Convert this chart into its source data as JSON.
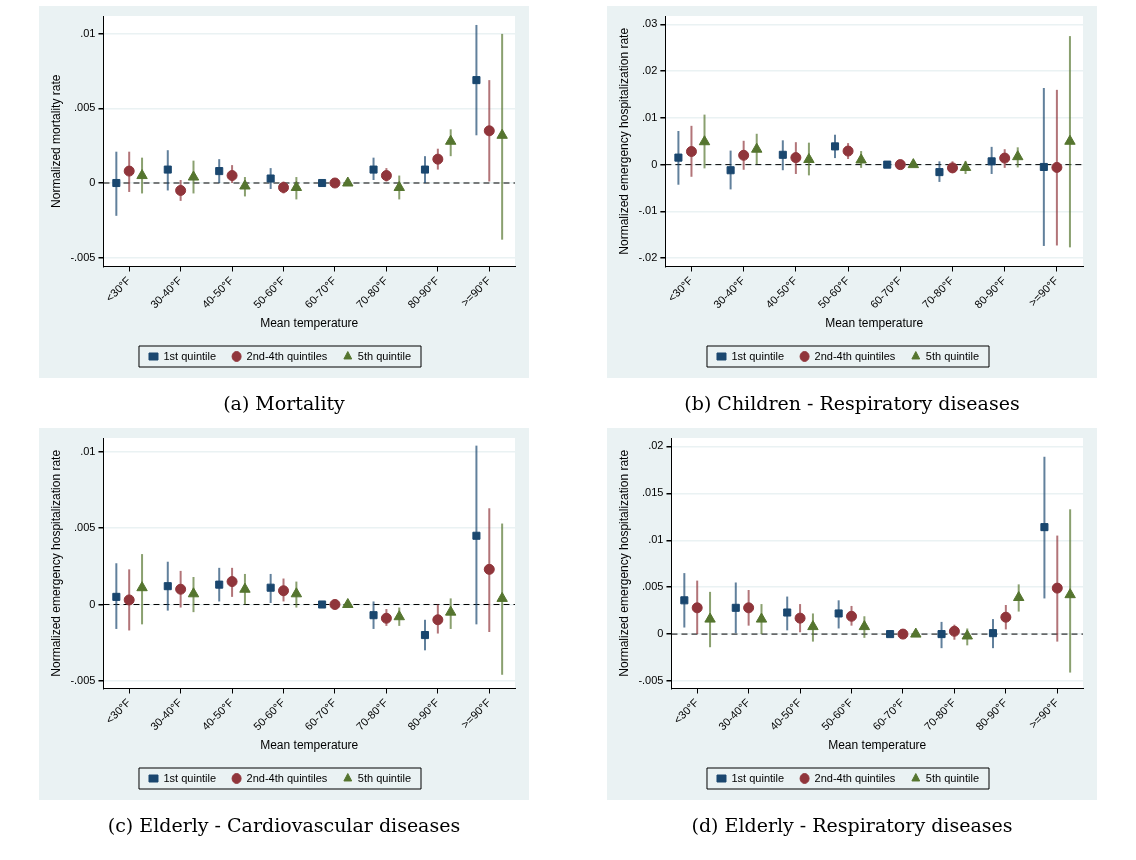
{
  "chart_data": [
    {
      "type": "scatter",
      "title": "(a) Mortality",
      "xlabel": "Mean temperature",
      "ylabel": "Normalized mortality rate",
      "categories": [
        "<30°F",
        "30-40°F",
        "40-50°F",
        "50-60°F",
        "60-70°F",
        "70-80°F",
        "80-90°F",
        ">=90°F"
      ],
      "ylim": [
        -0.0056,
        0.0112
      ],
      "yticks": [
        {
          "value": -0.005,
          "label": "-.005"
        },
        {
          "value": 0,
          "label": "0"
        },
        {
          "value": 0.005,
          "label": ".005"
        },
        {
          "value": 0.01,
          "label": ".01"
        }
      ],
      "grid": "y",
      "legend": "bottom",
      "ref_lines": [
        {
          "axis": "y",
          "value": 0,
          "color": "#000000",
          "line_style": "dashed"
        }
      ],
      "series": [
        {
          "name": "1st quintile",
          "color": "#1a476f",
          "marker": "square",
          "values": [
            0,
            0.0009,
            0.0008,
            0.0003,
            0,
            0.0009,
            0.0009,
            0.0069
          ],
          "errors": [
            [
              -0.0022,
              0.0021
            ],
            [
              -0.0005,
              0.0022
            ],
            [
              0,
              0.0016
            ],
            [
              -0.0004,
              0.001
            ],
            null,
            [
              0.0002,
              0.0017
            ],
            [
              0,
              0.0018
            ],
            [
              0.0032,
              0.0106
            ]
          ]
        },
        {
          "name": "2nd-4th quintiles",
          "color": "#90353b",
          "marker": "circle",
          "values": [
            0.0008,
            -0.0005,
            0.0005,
            -0.0003,
            0,
            0.0005,
            0.0016,
            0.0035
          ],
          "errors": [
            [
              -0.0006,
              0.0021
            ],
            [
              -0.0012,
              0.0002
            ],
            [
              0,
              0.0012
            ],
            [
              -0.0007,
              0.0001
            ],
            null,
            [
              0.0001,
              0.001
            ],
            [
              0.0009,
              0.0023
            ],
            [
              0.0001,
              0.0069
            ]
          ]
        },
        {
          "name": "5th quintile",
          "color": "#55752f",
          "marker": "triangle",
          "values": [
            0.0005,
            0.0004,
            -0.0002,
            -0.0003,
            0,
            -0.0003,
            0.0028,
            0.0032
          ],
          "errors": [
            [
              -0.0007,
              0.0017
            ],
            [
              -0.0007,
              0.0015
            ],
            [
              -0.0009,
              0.0004
            ],
            [
              -0.0011,
              0.0004
            ],
            null,
            [
              -0.0011,
              0.0005
            ],
            [
              0.0018,
              0.0036
            ],
            [
              -0.0038,
              0.01
            ]
          ]
        }
      ]
    },
    {
      "type": "scatter",
      "title": "(b) Children - Respiratory diseases",
      "xlabel": "Mean temperature",
      "ylabel": "Normalized emergency hospitalization rate",
      "categories": [
        "<30°F",
        "30-40°F",
        "40-50°F",
        "50-60°F",
        "60-70°F",
        "70-80°F",
        "80-90°F",
        ">=90°F"
      ],
      "ylim": [
        -0.0218,
        0.0318
      ],
      "yticks": [
        {
          "value": -0.02,
          "label": "-.02"
        },
        {
          "value": -0.01,
          "label": "-.01"
        },
        {
          "value": 0,
          "label": "0"
        },
        {
          "value": 0.01,
          "label": ".01"
        },
        {
          "value": 0.02,
          "label": ".02"
        },
        {
          "value": 0.03,
          "label": ".03"
        }
      ],
      "grid": "y",
      "legend": "bottom",
      "ref_lines": [
        {
          "axis": "y",
          "value": 0,
          "color": "#000000",
          "line_style": "dashed"
        }
      ],
      "series": [
        {
          "name": "1st quintile",
          "color": "#1a476f",
          "marker": "square",
          "values": [
            0.0015,
            -0.0012,
            0.0021,
            0.0039,
            0,
            -0.0016,
            0.0007,
            -0.0005
          ],
          "errors": [
            [
              -0.0043,
              0.0072
            ],
            [
              -0.0053,
              0.003
            ],
            [
              -0.0012,
              0.0052
            ],
            [
              0.0014,
              0.0064
            ],
            null,
            [
              -0.0037,
              0.0007
            ],
            [
              -0.002,
              0.0038
            ],
            [
              -0.0174,
              0.0164
            ]
          ]
        },
        {
          "name": "2nd-4th quintiles",
          "color": "#90353b",
          "marker": "circle",
          "values": [
            0.0028,
            0.002,
            0.0015,
            0.0029,
            0,
            -0.0007,
            0.0014,
            -0.0006
          ],
          "errors": [
            [
              -0.0026,
              0.0083
            ],
            [
              -0.0011,
              0.0051
            ],
            [
              -0.002,
              0.0048
            ],
            [
              0.0012,
              0.0046
            ],
            null,
            [
              -0.0018,
              0.0007
            ],
            [
              -0.0007,
              0.0033
            ],
            [
              -0.0173,
              0.016
            ]
          ]
        },
        {
          "name": "5th quintile",
          "color": "#55752f",
          "marker": "triangle",
          "values": [
            0.0049,
            0.0033,
            0.0011,
            0.001,
            0,
            -0.0006,
            0.0017,
            0.005
          ],
          "errors": [
            [
              -0.0008,
              0.0107
            ],
            [
              0.0001,
              0.0066
            ],
            [
              -0.0023,
              0.0047
            ],
            [
              -0.0007,
              0.0029
            ],
            null,
            [
              -0.002,
              0.0008
            ],
            [
              -0.0006,
              0.0037
            ],
            [
              -0.0177,
              0.0275
            ]
          ]
        }
      ]
    },
    {
      "type": "scatter",
      "title": "(c) Elderly - Cardiovascular diseases",
      "xlabel": "Mean temperature",
      "ylabel": "Normalized emergency hospitalization rate",
      "categories": [
        "<30°F",
        "30-40°F",
        "40-50°F",
        "50-60°F",
        "60-70°F",
        "70-80°F",
        "80-90°F",
        ">=90°F"
      ],
      "ylim": [
        -0.0055,
        0.0109
      ],
      "yticks": [
        {
          "value": -0.005,
          "label": "-.005"
        },
        {
          "value": 0,
          "label": "0"
        },
        {
          "value": 0.005,
          "label": ".005"
        },
        {
          "value": 0.01,
          "label": ".01"
        }
      ],
      "grid": "y",
      "legend": "bottom",
      "ref_lines": [
        {
          "axis": "y",
          "value": 0,
          "color": "#000000",
          "line_style": "dashed"
        }
      ],
      "series": [
        {
          "name": "1st quintile",
          "color": "#1a476f",
          "marker": "square",
          "values": [
            0.0005,
            0.0012,
            0.0013,
            0.0011,
            0,
            -0.0007,
            -0.002,
            0.0045
          ],
          "errors": [
            [
              -0.0016,
              0.0027
            ],
            [
              -0.0004,
              0.0028
            ],
            [
              0.0002,
              0.0024
            ],
            [
              0.0001,
              0.002
            ],
            null,
            [
              -0.0016,
              0.0002
            ],
            [
              -0.003,
              -0.001
            ],
            [
              -0.0013,
              0.0104
            ]
          ]
        },
        {
          "name": "2nd-4th quintiles",
          "color": "#90353b",
          "marker": "circle",
          "values": [
            0.0003,
            0.001,
            0.0015,
            0.0009,
            0,
            -0.0009,
            -0.001,
            0.0023
          ],
          "errors": [
            [
              -0.0017,
              0.0023
            ],
            [
              -0.0002,
              0.0022
            ],
            [
              0.0005,
              0.0024
            ],
            [
              0.0002,
              0.0017
            ],
            null,
            [
              -0.0014,
              -0.0003
            ],
            [
              -0.0019,
              0
            ],
            [
              -0.0018,
              0.0063
            ]
          ]
        },
        {
          "name": "5th quintile",
          "color": "#55752f",
          "marker": "triangle",
          "values": [
            0.0011,
            0.0007,
            0.001,
            0.0007,
            0,
            -0.0008,
            -0.0005,
            0.0004
          ],
          "errors": [
            [
              -0.0013,
              0.0033
            ],
            [
              -0.0005,
              0.0018
            ],
            [
              0,
              0.002
            ],
            [
              -0.0002,
              0.0015
            ],
            null,
            [
              -0.0014,
              -0.0002
            ],
            [
              -0.0016,
              0.0004
            ],
            [
              -0.0046,
              0.0053
            ]
          ]
        }
      ]
    },
    {
      "type": "scatter",
      "title": "(d) Elderly - Respiratory diseases",
      "xlabel": "Mean temperature",
      "ylabel": "Normalized emergency hospitalization rate",
      "categories": [
        "<30°F",
        "30-40°F",
        "40-50°F",
        "50-60°F",
        "60-70°F",
        "70-80°F",
        "80-90°F",
        ">=90°F"
      ],
      "ylim": [
        -0.0058,
        0.0209
      ],
      "yticks": [
        {
          "value": -0.005,
          "label": "-.005"
        },
        {
          "value": 0,
          "label": "0"
        },
        {
          "value": 0.005,
          "label": ".005"
        },
        {
          "value": 0.01,
          "label": ".01"
        },
        {
          "value": 0.015,
          "label": ".015"
        },
        {
          "value": 0.02,
          "label": ".02"
        }
      ],
      "grid": "y",
      "legend": "bottom",
      "ref_lines": [
        {
          "axis": "y",
          "value": 0,
          "color": "#000000",
          "line_style": "dashed"
        }
      ],
      "series": [
        {
          "name": "1st quintile",
          "color": "#1a476f",
          "marker": "square",
          "values": [
            0.0036,
            0.0028,
            0.0023,
            0.0022,
            0,
            0,
            0.0001,
            0.0114
          ],
          "errors": [
            [
              0.0007,
              0.0065
            ],
            [
              0.0001,
              0.0055
            ],
            [
              0.0004,
              0.004
            ],
            [
              0.0006,
              0.0036
            ],
            null,
            [
              -0.0015,
              0.0013
            ],
            [
              -0.0015,
              0.0016
            ],
            [
              0.0038,
              0.0189
            ]
          ]
        },
        {
          "name": "2nd-4th quintiles",
          "color": "#90353b",
          "marker": "circle",
          "values": [
            0.0028,
            0.0028,
            0.0017,
            0.0019,
            0,
            0.0003,
            0.0018,
            0.0049
          ],
          "errors": [
            [
              0,
              0.0057
            ],
            [
              0.0009,
              0.0047
            ],
            [
              0.0002,
              0.0032
            ],
            [
              0.0009,
              0.003
            ],
            null,
            [
              -0.0006,
              0.001
            ],
            [
              0.0005,
              0.0031
            ],
            [
              -0.0008,
              0.0105
            ]
          ]
        },
        {
          "name": "5th quintile",
          "color": "#55752f",
          "marker": "triangle",
          "values": [
            0.0016,
            0.0016,
            0.0008,
            0.0008,
            0,
            -0.0002,
            0.0039,
            0.0042
          ],
          "errors": [
            [
              -0.0014,
              0.0045
            ],
            [
              0,
              0.0032
            ],
            [
              -0.0008,
              0.0022
            ],
            [
              -0.0004,
              0.0019
            ],
            null,
            [
              -0.0012,
              0.0006
            ],
            [
              0.0024,
              0.0053
            ],
            [
              -0.0041,
              0.0133
            ]
          ]
        }
      ]
    }
  ]
}
